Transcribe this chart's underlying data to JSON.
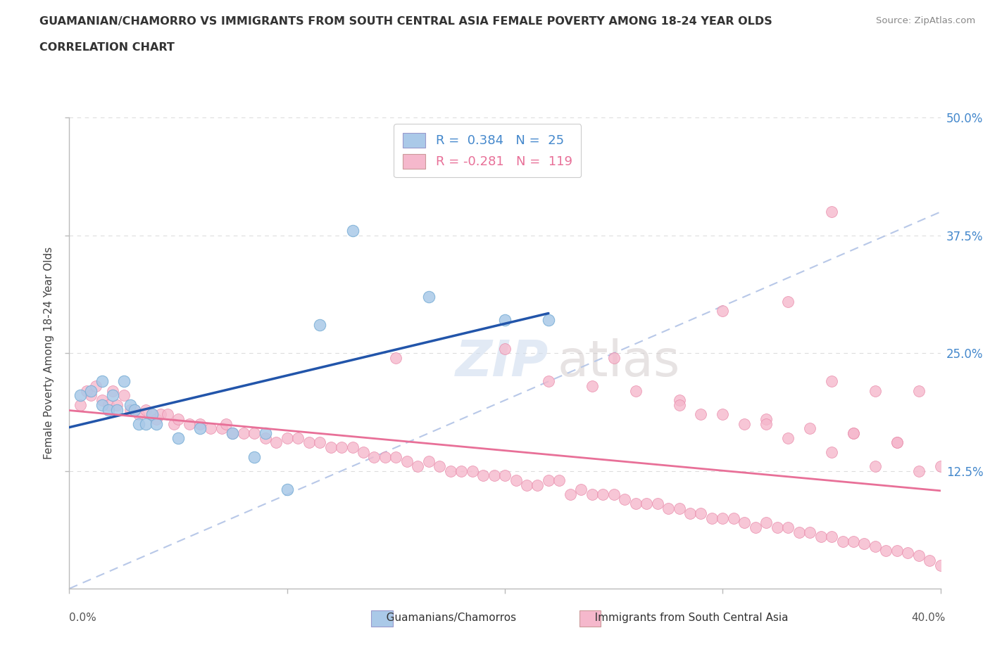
{
  "title_line1": "GUAMANIAN/CHAMORRO VS IMMIGRANTS FROM SOUTH CENTRAL ASIA FEMALE POVERTY AMONG 18-24 YEAR OLDS",
  "title_line2": "CORRELATION CHART",
  "source": "Source: ZipAtlas.com",
  "ylabel": "Female Poverty Among 18-24 Year Olds",
  "xlim": [
    0.0,
    0.4
  ],
  "ylim": [
    0.0,
    0.5
  ],
  "ytick_labels": [
    "12.5%",
    "25.0%",
    "37.5%",
    "50.0%"
  ],
  "ytick_vals": [
    0.125,
    0.25,
    0.375,
    0.5
  ],
  "blue_color": "#aac9e8",
  "blue_edge": "#7aafd6",
  "pink_color": "#f5b8cc",
  "pink_edge": "#e888a8",
  "blue_line_color": "#2255aa",
  "pink_line_color": "#e87098",
  "diag_line_color": "#b8c8e8",
  "diag_line_style": "--",
  "legend_r_blue": "R =  0.384",
  "legend_n_blue": "N =  25",
  "legend_r_pink": "R = -0.281",
  "legend_n_pink": "N =  119",
  "watermark_text": "ZIPatlas",
  "blue_scatter_x": [
    0.005,
    0.01,
    0.015,
    0.015,
    0.018,
    0.02,
    0.022,
    0.025,
    0.028,
    0.03,
    0.032,
    0.035,
    0.038,
    0.04,
    0.05,
    0.06,
    0.075,
    0.085,
    0.09,
    0.1,
    0.115,
    0.13,
    0.165,
    0.2,
    0.22
  ],
  "blue_scatter_y": [
    0.205,
    0.21,
    0.195,
    0.22,
    0.19,
    0.205,
    0.19,
    0.22,
    0.195,
    0.19,
    0.175,
    0.175,
    0.185,
    0.175,
    0.16,
    0.17,
    0.165,
    0.14,
    0.165,
    0.105,
    0.28,
    0.38,
    0.31,
    0.285,
    0.285
  ],
  "pink_scatter_x": [
    0.005,
    0.008,
    0.01,
    0.012,
    0.015,
    0.018,
    0.02,
    0.022,
    0.025,
    0.028,
    0.03,
    0.032,
    0.035,
    0.038,
    0.04,
    0.042,
    0.045,
    0.048,
    0.05,
    0.055,
    0.06,
    0.065,
    0.07,
    0.072,
    0.075,
    0.08,
    0.085,
    0.09,
    0.095,
    0.1,
    0.105,
    0.11,
    0.115,
    0.12,
    0.125,
    0.13,
    0.135,
    0.14,
    0.145,
    0.15,
    0.155,
    0.16,
    0.165,
    0.17,
    0.175,
    0.18,
    0.185,
    0.19,
    0.195,
    0.2,
    0.205,
    0.21,
    0.215,
    0.22,
    0.225,
    0.23,
    0.235,
    0.24,
    0.245,
    0.25,
    0.255,
    0.26,
    0.265,
    0.27,
    0.275,
    0.28,
    0.285,
    0.29,
    0.295,
    0.3,
    0.305,
    0.31,
    0.315,
    0.32,
    0.325,
    0.33,
    0.335,
    0.34,
    0.345,
    0.35,
    0.355,
    0.36,
    0.365,
    0.37,
    0.375,
    0.38,
    0.385,
    0.39,
    0.395,
    0.4,
    0.15,
    0.2,
    0.25,
    0.3,
    0.35,
    0.28,
    0.32,
    0.36,
    0.38,
    0.39,
    0.29,
    0.31,
    0.33,
    0.35,
    0.37,
    0.22,
    0.24,
    0.26,
    0.28,
    0.3,
    0.32,
    0.34,
    0.36,
    0.38,
    0.4,
    0.33,
    0.35,
    0.37,
    0.39
  ],
  "pink_scatter_y": [
    0.195,
    0.21,
    0.205,
    0.215,
    0.2,
    0.195,
    0.21,
    0.195,
    0.205,
    0.19,
    0.19,
    0.185,
    0.19,
    0.185,
    0.18,
    0.185,
    0.185,
    0.175,
    0.18,
    0.175,
    0.175,
    0.17,
    0.17,
    0.175,
    0.165,
    0.165,
    0.165,
    0.16,
    0.155,
    0.16,
    0.16,
    0.155,
    0.155,
    0.15,
    0.15,
    0.15,
    0.145,
    0.14,
    0.14,
    0.14,
    0.135,
    0.13,
    0.135,
    0.13,
    0.125,
    0.125,
    0.125,
    0.12,
    0.12,
    0.12,
    0.115,
    0.11,
    0.11,
    0.115,
    0.115,
    0.1,
    0.105,
    0.1,
    0.1,
    0.1,
    0.095,
    0.09,
    0.09,
    0.09,
    0.085,
    0.085,
    0.08,
    0.08,
    0.075,
    0.075,
    0.075,
    0.07,
    0.065,
    0.07,
    0.065,
    0.065,
    0.06,
    0.06,
    0.055,
    0.055,
    0.05,
    0.05,
    0.048,
    0.045,
    0.04,
    0.04,
    0.038,
    0.035,
    0.03,
    0.025,
    0.245,
    0.255,
    0.245,
    0.295,
    0.4,
    0.2,
    0.18,
    0.165,
    0.155,
    0.125,
    0.185,
    0.175,
    0.16,
    0.145,
    0.13,
    0.22,
    0.215,
    0.21,
    0.195,
    0.185,
    0.175,
    0.17,
    0.165,
    0.155,
    0.13,
    0.305,
    0.22,
    0.21,
    0.21
  ],
  "background_color": "#ffffff",
  "grid_color": "#dddddd",
  "right_tick_color": "#4488cc"
}
